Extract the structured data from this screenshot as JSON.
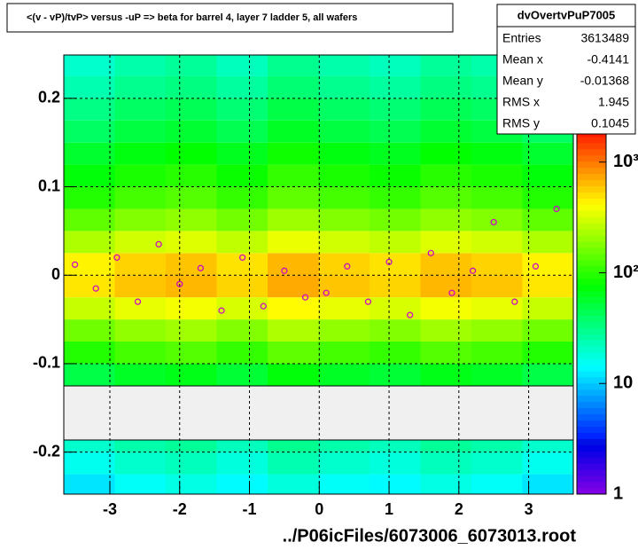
{
  "chart_data": {
    "type": "heatmap",
    "title": "<(v - vP)/tvP> versus  -uP => beta for barrel 4, layer 7 ladder 5, all wafers",
    "x_label": "../P06icFiles/6073006_6073013.root",
    "xlim": [
      -3.66,
      3.64
    ],
    "xticks": [
      -3,
      -2,
      -1,
      0,
      1,
      2,
      3
    ],
    "ylim": [
      -0.2475,
      0.249
    ],
    "yticks": [
      -0.2,
      -0.1,
      0,
      0.1,
      0.2
    ],
    "zlim": [
      1,
      2200
    ],
    "zlog": true,
    "zticks": [
      1,
      10,
      {
        "value": 100,
        "label": "10²"
      },
      {
        "value": 1000,
        "label": "10³"
      }
    ],
    "grid": true,
    "xbins": [
      -3.66,
      -2.93,
      -2.2,
      -1.47,
      -0.74,
      -0.01,
      0.72,
      1.45,
      2.18,
      2.91,
      3.64
    ],
    "ybins": [
      -0.25,
      -0.225,
      -0.2,
      -0.175,
      -0.15,
      -0.125,
      -0.1,
      -0.075,
      -0.05,
      -0.025,
      0,
      0.025,
      0.05,
      0.075,
      0.1,
      0.125,
      0.15,
      0.175,
      0.2,
      0.225,
      0.25
    ],
    "z": [
      [
        12,
        15,
        17,
        14,
        18,
        15,
        14,
        17,
        15,
        12
      ],
      [
        16,
        20,
        22,
        18,
        24,
        20,
        18,
        22,
        20,
        16
      ],
      [
        20,
        25,
        28,
        22,
        30,
        25,
        22,
        28,
        25,
        20
      ],
      [
        null,
        null,
        null,
        null,
        null,
        null,
        null,
        null,
        null,
        null
      ],
      [
        null,
        null,
        null,
        null,
        null,
        null,
        null,
        null,
        null,
        null
      ],
      [
        48,
        60,
        66,
        54,
        72,
        60,
        54,
        66,
        60,
        48
      ],
      [
        96,
        120,
        132,
        108,
        144,
        120,
        108,
        132,
        120,
        96
      ],
      [
        160,
        200,
        220,
        180,
        240,
        200,
        180,
        220,
        200,
        160
      ],
      [
        280,
        350,
        385,
        315,
        420,
        350,
        315,
        385,
        350,
        280
      ],
      [
        480,
        600,
        660,
        540,
        720,
        600,
        540,
        660,
        600,
        480
      ],
      [
        440,
        550,
        605,
        495,
        660,
        550,
        495,
        605,
        550,
        440
      ],
      [
        240,
        300,
        330,
        270,
        360,
        300,
        270,
        330,
        300,
        240
      ],
      [
        144,
        180,
        198,
        162,
        216,
        180,
        162,
        198,
        180,
        144
      ],
      [
        96,
        120,
        132,
        108,
        144,
        120,
        108,
        132,
        120,
        96
      ],
      [
        72,
        90,
        99,
        81,
        108,
        90,
        81,
        99,
        90,
        72
      ],
      [
        56,
        70,
        77,
        63,
        84,
        70,
        63,
        77,
        70,
        56
      ],
      [
        40,
        50,
        55,
        45,
        60,
        50,
        45,
        55,
        50,
        40
      ],
      [
        32,
        40,
        44,
        36,
        48,
        40,
        36,
        44,
        40,
        32
      ],
      [
        24,
        30,
        33,
        27,
        36,
        30,
        27,
        33,
        30,
        24
      ],
      [
        20,
        25,
        28,
        22,
        30,
        25,
        22,
        28,
        25,
        20
      ]
    ],
    "profile": {
      "color": "#cc00cc",
      "x": [
        -3.5,
        -3.2,
        -2.9,
        -2.6,
        -2.3,
        -2.0,
        -1.7,
        -1.4,
        -1.1,
        -0.8,
        -0.5,
        -0.2,
        0.1,
        0.4,
        0.7,
        1.0,
        1.3,
        1.6,
        1.9,
        2.2,
        2.5,
        2.8,
        3.1,
        3.4
      ],
      "y": [
        0.012,
        -0.015,
        0.02,
        -0.03,
        0.035,
        -0.01,
        0.008,
        -0.04,
        0.02,
        -0.035,
        0.005,
        -0.025,
        -0.02,
        0.01,
        -0.03,
        0.015,
        -0.045,
        0.025,
        -0.02,
        0.005,
        0.06,
        -0.03,
        0.01,
        0.075
      ]
    },
    "stats": {
      "name": "dvOvertvPuP7005",
      "rows": [
        [
          "Entries",
          3613489
        ],
        [
          "Mean x",
          -0.4141
        ],
        [
          "Mean y",
          -0.01368
        ],
        [
          "RMS x",
          1.945
        ],
        [
          "RMS y",
          0.1045
        ]
      ]
    }
  }
}
